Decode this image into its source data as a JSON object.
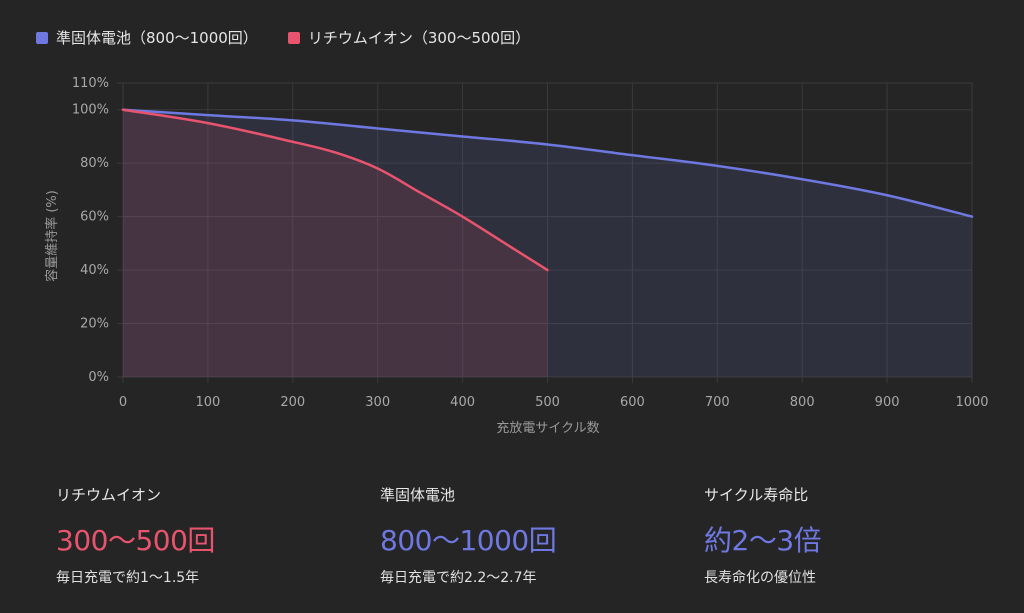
{
  "chart_data": {
    "type": "area",
    "xlabel": "充放電サイクル数",
    "ylabel": "容量維持率 (%)",
    "xlim": [
      0,
      1000
    ],
    "ylim": [
      0,
      110
    ],
    "x_ticks": [
      "0",
      "100",
      "200",
      "300",
      "400",
      "500",
      "600",
      "700",
      "800",
      "900",
      "1000"
    ],
    "y_ticks": [
      "0%",
      "20%",
      "40%",
      "60%",
      "80%",
      "100%",
      "110%"
    ],
    "grid": true,
    "legend_position": "top-left",
    "series": [
      {
        "name": "準固体電池（800〜1000回）",
        "color": "#6e78e0",
        "x": [
          0,
          100,
          200,
          300,
          400,
          500,
          600,
          700,
          800,
          900,
          1000
        ],
        "values": [
          100,
          98,
          96,
          93,
          90,
          87,
          83,
          79,
          74,
          68,
          60
        ]
      },
      {
        "name": "リチウムイオン（300〜500回）",
        "color": "#e8546e",
        "x": [
          0,
          100,
          200,
          250,
          300,
          350,
          400,
          450,
          500
        ],
        "values": [
          100,
          95,
          88,
          84,
          78,
          69,
          60,
          50,
          40
        ]
      }
    ]
  },
  "stats": [
    {
      "label": "リチウムイオン",
      "value": "300〜500回",
      "sub": "毎日充電で約1〜1.5年",
      "color": "#e8546e"
    },
    {
      "label": "準固体電池",
      "value": "800〜1000回",
      "sub": "毎日充電で約2.2〜2.7年",
      "color": "#6e78e0"
    },
    {
      "label": "サイクル寿命比",
      "value": "約2〜3倍",
      "sub": "長寿命化の優位性",
      "color": "#6e78e0"
    }
  ]
}
